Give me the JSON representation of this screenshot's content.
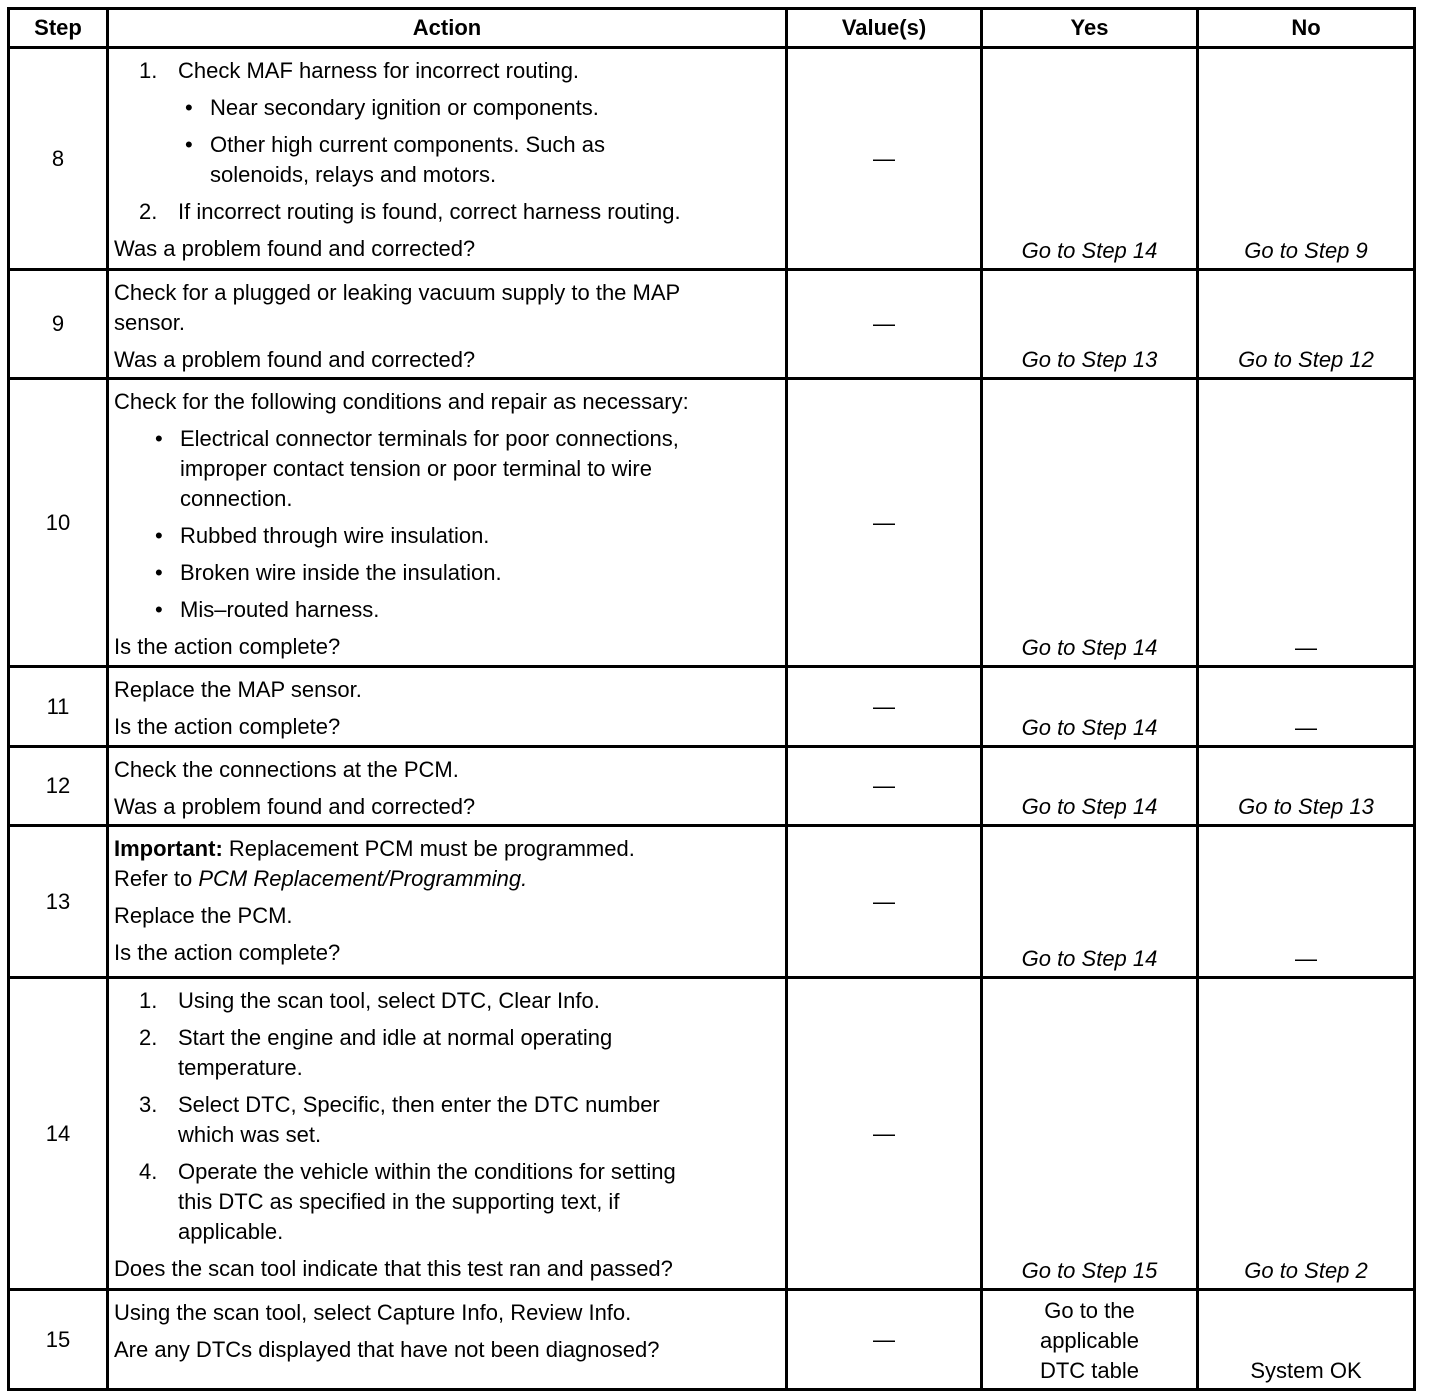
{
  "headers": [
    "Step",
    "Action",
    "Value(s)",
    "Yes",
    "No"
  ],
  "rows": [
    {
      "step": "8",
      "value": "—",
      "yes": "Go to Step 14",
      "no": "Go to Step 9",
      "items": [
        {
          "kind": "num",
          "marker": "1.",
          "lines": [
            "Check MAF harness for incorrect routing."
          ]
        },
        {
          "kind": "bul",
          "marker": "•",
          "lines": [
            "Near secondary ignition or components."
          ]
        },
        {
          "kind": "bul",
          "marker": "•",
          "lines": [
            "Other high current components. Such as",
            "solenoids, relays and motors."
          ]
        },
        {
          "kind": "num",
          "marker": "2.",
          "lines": [
            "If incorrect routing is found, correct harness routing."
          ]
        },
        {
          "kind": "text",
          "lines": [
            "Was a problem found and corrected?"
          ]
        }
      ]
    },
    {
      "step": "9",
      "value": "—",
      "yes": "Go to Step 13",
      "no": "Go to Step 12",
      "items": [
        {
          "kind": "text",
          "lines": [
            "Check for a plugged or leaking vacuum supply to the MAP",
            "sensor."
          ]
        },
        {
          "kind": "text",
          "lines": [
            "Was a problem found and corrected?"
          ]
        }
      ]
    },
    {
      "step": "10",
      "value": "—",
      "yes": "Go to Step 14",
      "no": "—",
      "items": [
        {
          "kind": "text",
          "lines": [
            "Check for the following conditions and repair as necessary:"
          ]
        },
        {
          "kind": "bul2",
          "marker": "•",
          "lines": [
            "Electrical connector terminals for poor connections,",
            "improper contact tension or poor terminal to wire",
            "connection."
          ]
        },
        {
          "kind": "bul2",
          "marker": "•",
          "lines": [
            "Rubbed through wire insulation."
          ]
        },
        {
          "kind": "bul2",
          "marker": "•",
          "lines": [
            "Broken wire inside the insulation."
          ]
        },
        {
          "kind": "bul2",
          "marker": "•",
          "lines": [
            "Mis–routed harness."
          ]
        },
        {
          "kind": "text",
          "lines": [
            "Is the action complete?"
          ]
        }
      ]
    },
    {
      "step": "11",
      "value": "—",
      "yes": "Go to Step 14",
      "no": "—",
      "items": [
        {
          "kind": "text",
          "lines": [
            "Replace the MAP sensor."
          ]
        },
        {
          "kind": "text",
          "lines": [
            "Is the action complete?"
          ]
        }
      ]
    },
    {
      "step": "12",
      "value": "—",
      "yes": "Go to Step 14",
      "no": "Go to Step 13",
      "items": [
        {
          "kind": "text",
          "lines": [
            "Check the connections at the PCM."
          ]
        },
        {
          "kind": "text",
          "lines": [
            "Was a problem found and corrected?"
          ]
        }
      ]
    },
    {
      "step": "13",
      "value": "—",
      "yes": "Go to Step 14",
      "no": "—",
      "items": [
        {
          "kind": "rich",
          "lines": [
            [
              {
                "text": "Important:",
                "style": "b"
              },
              {
                "text": " Replacement PCM must be programmed.",
                "style": ""
              }
            ],
            [
              {
                "text": "Refer to ",
                "style": ""
              },
              {
                "text": "PCM Replacement/Programming.",
                "style": "i"
              }
            ]
          ]
        },
        {
          "kind": "text",
          "lines": [
            "Replace the PCM."
          ]
        },
        {
          "kind": "text",
          "lines": [
            "Is the action complete?"
          ]
        }
      ]
    },
    {
      "step": "14",
      "value": "—",
      "yes": "Go to Step 15",
      "no": "Go to Step 2",
      "items": [
        {
          "kind": "num",
          "marker": "1.",
          "lines": [
            "Using the scan tool, select DTC, Clear Info."
          ]
        },
        {
          "kind": "num",
          "marker": "2.",
          "lines": [
            "Start the engine and idle at normal operating",
            "temperature."
          ]
        },
        {
          "kind": "num",
          "marker": "3.",
          "lines": [
            "Select DTC, Specific, then enter the DTC number",
            "which was set."
          ]
        },
        {
          "kind": "num",
          "marker": "4.",
          "lines": [
            "Operate the vehicle within the conditions for setting",
            "this DTC as specified in the supporting text, if",
            "applicable."
          ]
        },
        {
          "kind": "text",
          "lines": [
            "Does the scan tool indicate that this test ran and passed?"
          ]
        }
      ]
    },
    {
      "step": "15",
      "value": "—",
      "yes_lines": [
        "Go to the",
        "applicable",
        "DTC table"
      ],
      "no": "System OK",
      "plain": true,
      "items": [
        {
          "kind": "text",
          "lines": [
            "Using the scan tool, select Capture Info, Review Info."
          ]
        },
        {
          "kind": "text",
          "lines": [
            "Are any DTCs displayed that have not been diagnosed?"
          ]
        }
      ]
    }
  ]
}
